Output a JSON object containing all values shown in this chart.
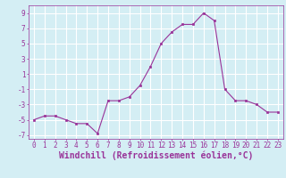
{
  "x": [
    0,
    1,
    2,
    3,
    4,
    5,
    6,
    7,
    8,
    9,
    10,
    11,
    12,
    13,
    14,
    15,
    16,
    17,
    18,
    19,
    20,
    21,
    22,
    23
  ],
  "y": [
    -5.0,
    -4.5,
    -4.5,
    -5.0,
    -5.5,
    -5.5,
    -6.8,
    -2.5,
    -2.5,
    -2.0,
    -0.5,
    2.0,
    5.0,
    6.5,
    7.5,
    7.5,
    9.0,
    8.0,
    -1.0,
    -2.5,
    -2.5,
    -3.0,
    -4.0,
    -4.0
  ],
  "line_color": "#993399",
  "marker": "s",
  "marker_size": 2.0,
  "line_width": 0.8,
  "xlabel": "Windchill (Refroidissement éolien,°C)",
  "xlim": [
    -0.5,
    23.5
  ],
  "ylim": [
    -7.5,
    10.0
  ],
  "yticks": [
    -7,
    -5,
    -3,
    -1,
    1,
    3,
    5,
    7,
    9
  ],
  "xticks": [
    0,
    1,
    2,
    3,
    4,
    5,
    6,
    7,
    8,
    9,
    10,
    11,
    12,
    13,
    14,
    15,
    16,
    17,
    18,
    19,
    20,
    21,
    22,
    23
  ],
  "background_color": "#d4eef4",
  "grid_color": "#ffffff",
  "tick_label_fontsize": 5.5,
  "xlabel_fontsize": 7.0,
  "label_color": "#993399"
}
